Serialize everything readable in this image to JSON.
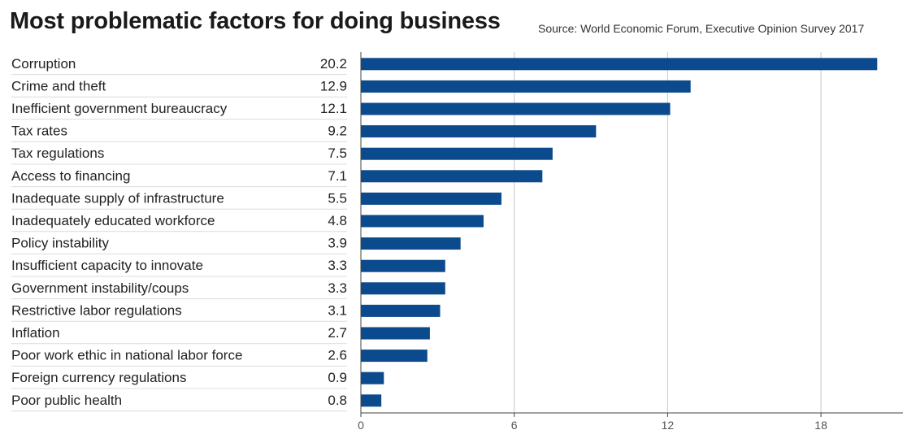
{
  "header": {
    "title": "Most problematic factors for doing business",
    "source": "Source: World Economic Forum, Executive Opinion Survey 2017"
  },
  "chart_data": {
    "type": "bar",
    "orientation": "horizontal",
    "title": "Most problematic factors for doing business",
    "source": "Source: World Economic Forum, Executive Opinion Survey 2017",
    "categories": [
      "Corruption",
      "Crime and theft",
      "Inefficient government bureaucracy",
      "Tax rates",
      "Tax regulations",
      "Access to financing",
      "Inadequate supply of infrastructure",
      "Inadequately educated workforce",
      "Policy instability",
      "Insufficient capacity to innovate",
      "Government instability/coups",
      "Restrictive labor regulations",
      "Inflation",
      "Poor work ethic in national labor force",
      "Foreign currency regulations",
      "Poor public health"
    ],
    "values": [
      20.2,
      12.9,
      12.1,
      9.2,
      7.5,
      7.1,
      5.5,
      4.8,
      3.9,
      3.3,
      3.3,
      3.1,
      2.7,
      2.6,
      0.9,
      0.8
    ],
    "value_labels": [
      "20.2",
      "12.9",
      "12.1",
      "9.2",
      "7.5",
      "7.1",
      "5.5",
      "4.8",
      "3.9",
      "3.3",
      "3.3",
      "3.1",
      "2.7",
      "2.6",
      "0.9",
      "0.8"
    ],
    "xticks": [
      "0",
      "6",
      "12",
      "18"
    ],
    "xlim": [
      0,
      20.7
    ],
    "grid": true,
    "colors": {
      "bar": "#0b4a8c",
      "grid": "#c8c8c8",
      "row_rule": "#dcdcdc"
    }
  }
}
